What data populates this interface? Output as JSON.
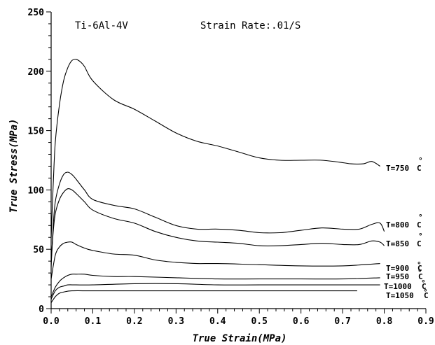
{
  "chart_data": {
    "type": "line",
    "title": "",
    "annotations": [
      "Ti-6Al-4V",
      "Strain Rate:.01/S"
    ],
    "xlabel": "True Strain(MPa)",
    "ylabel": "True Stress(MPa)",
    "xlim": [
      0,
      0.9
    ],
    "ylim": [
      0,
      250
    ],
    "xticks": [
      "0.0",
      "0.1",
      "0.2",
      "0.3",
      "0.4",
      "0.5",
      "0.6",
      "0.7",
      "0.8",
      "0.9"
    ],
    "yticks": [
      "0",
      "50",
      "100",
      "150",
      "200",
      "250"
    ],
    "grid": false,
    "series": [
      {
        "name": "T=750 °C",
        "label": "T=750",
        "degree": "°",
        "unit": "C",
        "x": [
          0,
          0.005,
          0.01,
          0.02,
          0.03,
          0.04,
          0.05,
          0.06,
          0.07,
          0.08,
          0.1,
          0.15,
          0.2,
          0.25,
          0.3,
          0.35,
          0.4,
          0.45,
          0.5,
          0.55,
          0.6,
          0.65,
          0.7,
          0.72,
          0.75,
          0.77,
          0.79
        ],
        "y": [
          60,
          105,
          140,
          172,
          192,
          203,
          209,
          210,
          208,
          204,
          192,
          176,
          168,
          158,
          148,
          141,
          137,
          132,
          127,
          125,
          125,
          125,
          123,
          122,
          122,
          124,
          120
        ]
      },
      {
        "name": "T=800 °C",
        "label": "T=800",
        "degree": "°",
        "unit": "C",
        "x": [
          0,
          0.005,
          0.01,
          0.02,
          0.03,
          0.04,
          0.05,
          0.06,
          0.08,
          0.1,
          0.15,
          0.2,
          0.25,
          0.3,
          0.35,
          0.4,
          0.45,
          0.5,
          0.55,
          0.6,
          0.65,
          0.7,
          0.74,
          0.77,
          0.79,
          0.8
        ],
        "y": [
          35,
          70,
          90,
          105,
          113,
          115,
          113,
          109,
          100,
          92,
          87,
          84,
          77,
          70,
          67,
          67,
          66,
          64,
          64,
          66,
          68,
          67,
          67,
          71,
          72,
          65
        ]
      },
      {
        "name": "T=850 °C",
        "label": "T=850",
        "degree": "°",
        "unit": "C",
        "x": [
          0,
          0.005,
          0.01,
          0.02,
          0.03,
          0.04,
          0.05,
          0.06,
          0.08,
          0.1,
          0.15,
          0.2,
          0.25,
          0.3,
          0.35,
          0.4,
          0.45,
          0.5,
          0.55,
          0.6,
          0.65,
          0.7,
          0.74,
          0.77,
          0.79,
          0.8
        ],
        "y": [
          40,
          65,
          80,
          92,
          98,
          101,
          100,
          97,
          90,
          83,
          76,
          72,
          65,
          60,
          57,
          56,
          55,
          53,
          53,
          54,
          55,
          54,
          54,
          57,
          56,
          53
        ]
      },
      {
        "name": "T=900 °C",
        "label": "T=900",
        "degree": "°",
        "unit": "C",
        "x": [
          0,
          0.01,
          0.02,
          0.03,
          0.04,
          0.05,
          0.06,
          0.08,
          0.1,
          0.15,
          0.2,
          0.25,
          0.3,
          0.35,
          0.4,
          0.5,
          0.6,
          0.7,
          0.75,
          0.79
        ],
        "y": [
          25,
          45,
          52,
          55,
          56,
          56,
          54,
          51,
          49,
          46,
          45,
          41,
          39,
          38,
          38,
          37,
          36,
          36,
          37,
          38
        ]
      },
      {
        "name": "T=950 °C",
        "label": "T=950",
        "degree": "°",
        "unit": "C",
        "x": [
          0,
          0.01,
          0.02,
          0.03,
          0.04,
          0.05,
          0.06,
          0.08,
          0.1,
          0.15,
          0.2,
          0.3,
          0.4,
          0.5,
          0.6,
          0.7,
          0.79
        ],
        "y": [
          10,
          18,
          23,
          26,
          28,
          29,
          29,
          29,
          28,
          27,
          27,
          26,
          25,
          25,
          25,
          25,
          26
        ]
      },
      {
        "name": "T=1000 °C",
        "label": "T=1000",
        "degree": "°",
        "unit": "C",
        "x": [
          0,
          0.01,
          0.02,
          0.03,
          0.04,
          0.06,
          0.1,
          0.2,
          0.3,
          0.4,
          0.5,
          0.6,
          0.7,
          0.79
        ],
        "y": [
          8,
          15,
          18,
          19,
          20,
          20,
          20,
          21,
          21,
          20,
          20,
          20,
          20,
          20
        ]
      },
      {
        "name": "T=1050 °C",
        "label": "T=1050",
        "degree": "°",
        "unit": "C",
        "x": [
          0,
          0.01,
          0.02,
          0.03,
          0.05,
          0.1,
          0.2,
          0.3,
          0.4,
          0.5,
          0.6,
          0.7,
          0.735
        ],
        "y": [
          5,
          10,
          13,
          14,
          15,
          15,
          15,
          15,
          15,
          15,
          15,
          15,
          15
        ]
      }
    ]
  }
}
